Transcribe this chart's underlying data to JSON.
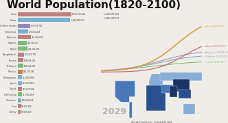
{
  "title": "World Population(1820-2100)",
  "title_fontsize": 11,
  "background_color": "#f0ede8",
  "year_label": "2029",
  "world_pop_label": "World Population:  8,504,631,099",
  "countries": [
    "India",
    "China",
    "United States",
    "Indonesia",
    "Pakistan",
    "Nigeria",
    "Brazil",
    "Bangladesh",
    "Russia",
    "Ethiopia",
    "Mexico",
    "Philippines",
    "Japan",
    "Egypt",
    "DR Congo",
    "Vietnam",
    "Iran",
    "Turkey"
  ],
  "values": [
    1495677262,
    1464099722,
    346179761,
    297155429,
    366394634,
    258116215,
    272327356,
    178237782,
    149608356,
    149022029,
    140209545,
    122858999,
    121185815,
    119674144,
    117965899,
    105838834,
    92217565,
    88826450
  ],
  "bar_colors": [
    "#c08080",
    "#7ab0d4",
    "#9988bb",
    "#7ab0d4",
    "#c08080",
    "#77bb77",
    "#77bb77",
    "#c08080",
    "#c08080",
    "#77bb77",
    "#bb8844",
    "#7ab0d4",
    "#7ab0d4",
    "#c08080",
    "#77bb77",
    "#7ab0d4",
    "#c08080",
    "#c08080"
  ],
  "line_colors": {
    "Asia": "#d4a030",
    "Africa": "#c07070",
    "Americas": "#b090b0",
    "Caribbean": "#70a0c0",
    "Oceania": "#70b870"
  },
  "line_labels": {
    "Asia": "Asia: 5,358,103,117",
    "Africa": "Africa: 2,202,130,429",
    "Americas": "Americas: 1,124,879,335",
    "Caribbean": "Caribbean: 514,000,000",
    "Oceania": "Oceania: 55,297,517"
  },
  "map_ocean_color": "#c8dff0",
  "map_land_colors": {
    "very_dark": "#1a3565",
    "dark": "#2a5090",
    "medium": "#4878b8",
    "light": "#88aed8",
    "very_light": "#c0d8f0"
  }
}
